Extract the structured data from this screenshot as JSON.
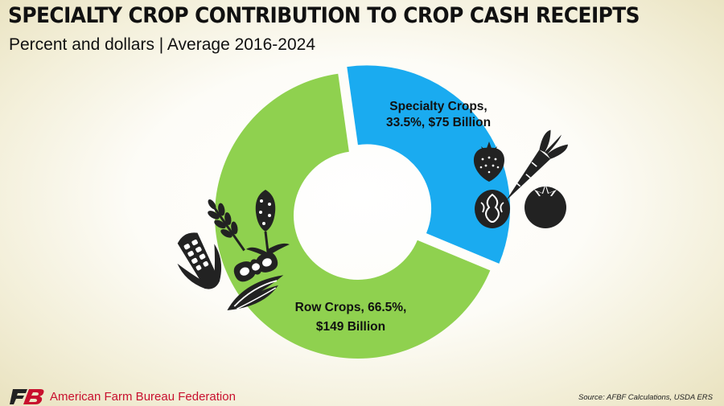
{
  "header": {
    "title": "SPECIALTY CROP CONTRIBUTION TO CROP CASH RECEIPTS",
    "subtitle": "Percent and dollars | Average 2016-2024"
  },
  "chart_data": {
    "type": "pie",
    "donut": true,
    "title": "SPECIALTY CROP CONTRIBUTION TO CROP CASH RECEIPTS",
    "subtitle": "Percent and dollars | Average 2016-2024",
    "slices": [
      {
        "name": "Specialty Crops",
        "percent": 33.5,
        "value_billion_usd": 75,
        "label_line1": "Specialty Crops,",
        "label_line2": "33.5%, $75 Billion",
        "color": "#1aabf0",
        "exploded": true
      },
      {
        "name": "Row Crops",
        "percent": 66.5,
        "value_billion_usd": 149,
        "label_line1": "Row Crops, 66.5%,",
        "label_line2": "$149 Billion",
        "color": "#8fd14f",
        "exploded": false
      }
    ]
  },
  "icons": {
    "specialty": [
      "strawberry-icon",
      "carrot-icon",
      "walnut-icon",
      "tomato-icon"
    ],
    "row": [
      "corn-icon",
      "wheat-icon",
      "sorghum-icon",
      "soybean-icon",
      "rice-icon"
    ]
  },
  "footer": {
    "logo_text": "American Farm Bureau Federation",
    "logo_mark": "FB",
    "source": "Source: AFBF Calculations, USDA ERS",
    "brand_color": "#c8102e"
  }
}
